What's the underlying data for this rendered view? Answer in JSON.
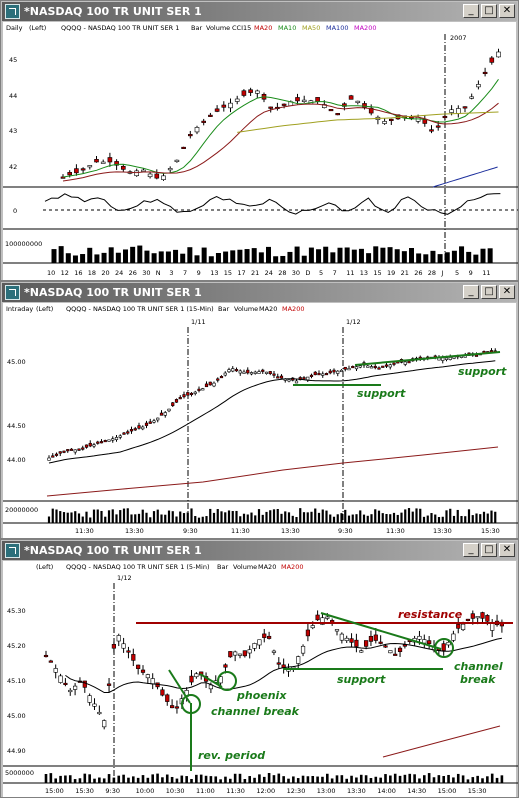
{
  "windows": [
    {
      "title": "*NASDAQ 100 TR UNIT SER 1",
      "header": {
        "mode": "Daily",
        "side": "(Left)",
        "symbol": "QQQQ - NASDAQ 100 TR UNIT SER 1",
        "bar": "Bar",
        "vol": "Volume",
        "ind": "CCI15",
        "ma1": "MA20",
        "ma2": "MA10",
        "ma3": "MA50",
        "ma4": "MA100",
        "ma5": "MA200"
      },
      "year_label": "2007",
      "y_ticks": [
        "45",
        "44",
        "43",
        "42"
      ],
      "cci_tick": "0",
      "vol_tick": "100000000",
      "x_ticks": [
        "10",
        "12",
        "16",
        "18",
        "20",
        "24",
        "26",
        "30",
        "N",
        "3",
        "7",
        "9",
        "13",
        "15",
        "17",
        "21",
        "24",
        "28",
        "30",
        "D",
        "5",
        "7",
        "11",
        "13",
        "15",
        "19",
        "21",
        "26",
        "28",
        "J",
        "5",
        "9",
        "11"
      ]
    },
    {
      "title": "*NASDAQ 100 TR UNIT SER 1",
      "header": {
        "mode": "Intraday",
        "side": "(Left)",
        "symbol": "QQQQ - NASDAQ 100 TR UNIT SER 1 (15-Min)",
        "bar": "Bar",
        "vol": "Volume",
        "ma1": "MA20",
        "ma2": "MA200"
      },
      "date_labels": [
        "1/11",
        "1/12"
      ],
      "y_ticks": [
        "45.00",
        "44.50",
        "44.00"
      ],
      "vol_tick": "20000000",
      "x_ticks": [
        "11:30",
        "13:30",
        "9:30",
        "11:30",
        "13:30",
        "9:30",
        "11:30",
        "13:30",
        "15:30"
      ],
      "annotations": [
        "support",
        "support"
      ]
    },
    {
      "title": "*NASDAQ 100 TR UNIT SER 1",
      "header": {
        "side": "(Left)",
        "symbol": "QQQQ - NASDAQ 100 TR UNIT SER 1 (5-Min)",
        "bar": "Bar",
        "vol": "Volume",
        "ma1": "MA20",
        "ma2": "MA200"
      },
      "date_label": "1/12",
      "y_ticks": [
        "45.30",
        "45.20",
        "45.10",
        "45.00",
        "44.90"
      ],
      "vol_tick": "5000000",
      "x_ticks": [
        "15:00",
        "15:30",
        "9:30",
        "10:00",
        "10:30",
        "11:00",
        "11:30",
        "12:00",
        "12:30",
        "13:00",
        "13:30",
        "14:00",
        "14:30",
        "15:00",
        "15:30"
      ],
      "annotations": {
        "resistance": "resistance",
        "support": "support",
        "phoenix": "phoenix",
        "channel_break_1": "channel break",
        "rev_period": "rev. period",
        "channel": "channel",
        "break": "break"
      }
    }
  ],
  "buttons": {
    "minimize": "_",
    "maximize": "□",
    "close": "✕"
  },
  "colors": {
    "up": "#000000",
    "down": "#c00000",
    "ma20": "#000000",
    "ma10": "#1a8c1a",
    "ma50": "#a0a020",
    "ma100": "#1c2e9c",
    "ma200": "#8b1a1a",
    "annotation_green": "#1a7a1a",
    "annotation_red": "#a00000"
  }
}
